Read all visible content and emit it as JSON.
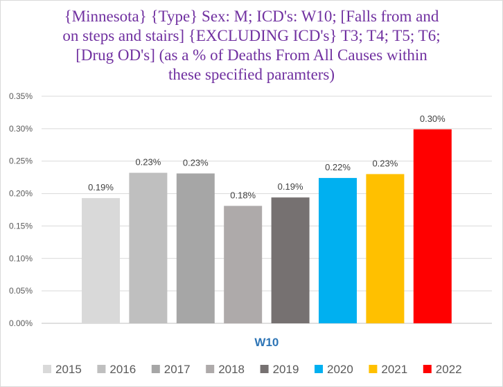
{
  "chart_data": {
    "type": "bar",
    "title_lines": [
      "{Minnesota} {Type} Sex: M; ICD's: W10; [Falls from and",
      "on steps and stairs] {EXCLUDING ICD's} T3; T4; T5; T6;",
      "[Drug OD's] (as a % of Deaths From All Causes within",
      "these specified paramters)"
    ],
    "categories": [
      "W10"
    ],
    "series": [
      {
        "name": "2015",
        "values": [
          0.193
        ],
        "label": "0.19%",
        "color": "#d9d9d9"
      },
      {
        "name": "2016",
        "values": [
          0.232
        ],
        "label": "0.23%",
        "color": "#bfbfbf"
      },
      {
        "name": "2017",
        "values": [
          0.231
        ],
        "label": "0.23%",
        "color": "#a6a6a6"
      },
      {
        "name": "2018",
        "values": [
          0.181
        ],
        "label": "0.18%",
        "color": "#aeaaaa"
      },
      {
        "name": "2019",
        "values": [
          0.194
        ],
        "label": "0.19%",
        "color": "#767171"
      },
      {
        "name": "2020",
        "values": [
          0.224
        ],
        "label": "0.22%",
        "color": "#00b0f0"
      },
      {
        "name": "2021",
        "values": [
          0.23
        ],
        "label": "0.23%",
        "color": "#ffc000"
      },
      {
        "name": "2022",
        "values": [
          0.299
        ],
        "label": "0.30%",
        "color": "#ff0000"
      }
    ],
    "yticks": [
      "0.00%",
      "0.05%",
      "0.10%",
      "0.15%",
      "0.20%",
      "0.25%",
      "0.30%",
      "0.35%"
    ],
    "ylim": [
      0,
      0.35
    ],
    "grid": true,
    "legend_position": "bottom"
  }
}
